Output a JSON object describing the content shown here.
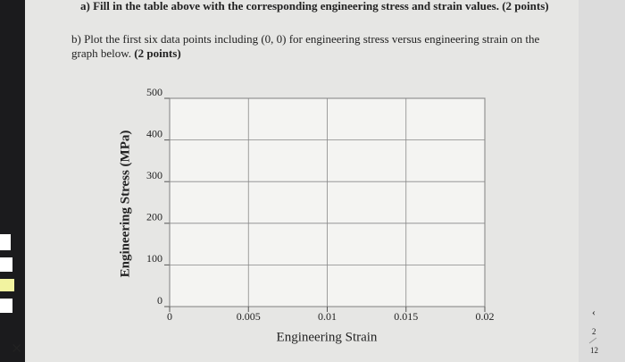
{
  "header": {
    "cut_line": "a) Fill in the table above with the corresponding engineering stress and strain values. (2 points)"
  },
  "question": {
    "text": "b) Plot the first six data points including (0, 0) for engineering stress versus engineering strain on the graph below.",
    "points": "(2 points)"
  },
  "page_indicator": {
    "current": "2",
    "total": "12"
  },
  "chart_data": {
    "type": "scatter",
    "xlabel": "Engineering Strain",
    "ylabel": "Engineering Stress (MPa)",
    "xlim": [
      0,
      0.02
    ],
    "xticks": [
      0,
      0.005,
      0.01,
      0.015,
      0.02
    ],
    "ylim": [
      0,
      500
    ],
    "yticks": [
      0,
      100,
      200,
      300,
      400,
      500
    ],
    "grid": true
  }
}
